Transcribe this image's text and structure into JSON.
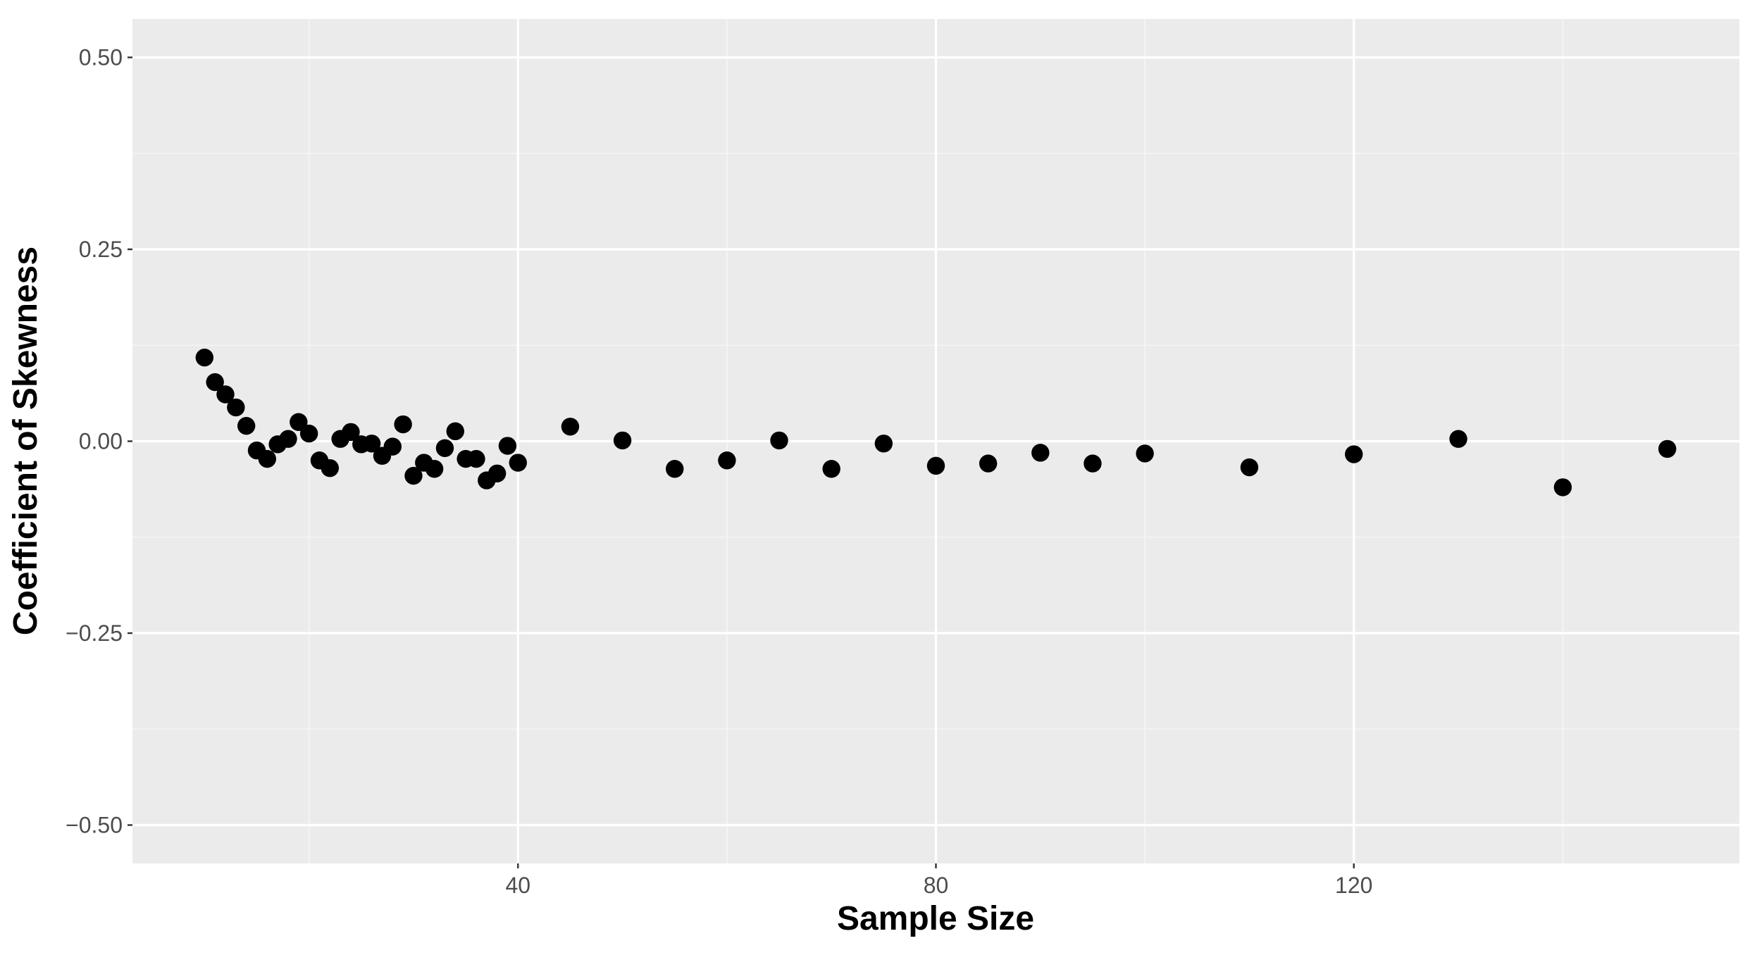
{
  "chart_data": {
    "type": "scatter",
    "xlabel": "Sample Size",
    "ylabel": "Coefficient of Skewness",
    "x": [
      10,
      11,
      12,
      13,
      14,
      15,
      16,
      17,
      18,
      19,
      20,
      21,
      22,
      23,
      24,
      25,
      26,
      27,
      28,
      29,
      30,
      31,
      32,
      33,
      34,
      35,
      36,
      37,
      38,
      39,
      40,
      45,
      50,
      55,
      60,
      65,
      70,
      75,
      80,
      85,
      90,
      95,
      100,
      110,
      120,
      130,
      140,
      150
    ],
    "values": [
      0.109,
      0.077,
      0.061,
      0.044,
      0.02,
      -0.012,
      -0.023,
      -0.004,
      0.003,
      0.025,
      0.01,
      -0.025,
      -0.035,
      0.003,
      0.012,
      -0.004,
      -0.003,
      -0.019,
      -0.007,
      0.022,
      -0.045,
      -0.028,
      -0.036,
      -0.009,
      0.013,
      -0.023,
      -0.023,
      -0.051,
      -0.042,
      -0.006,
      -0.028,
      0.019,
      0.001,
      -0.036,
      -0.025,
      0.001,
      -0.036,
      -0.003,
      -0.032,
      -0.029,
      -0.015,
      -0.029,
      -0.016,
      -0.034,
      -0.017,
      0.003,
      -0.06,
      -0.01
    ],
    "color": "#000000",
    "xlim": [
      3.1,
      156.9
    ],
    "xticks": [
      40,
      80,
      120
    ],
    "ylim": [
      -0.55,
      0.55
    ],
    "yticks": [
      {
        "value": -0.5,
        "label": "−0.50"
      },
      {
        "value": -0.25,
        "label": "−0.25"
      },
      {
        "value": 0,
        "label": "0.00"
      },
      {
        "value": 0.25,
        "label": "0.25"
      },
      {
        "value": 0.5,
        "label": "0.50"
      }
    ],
    "grid": true
  }
}
